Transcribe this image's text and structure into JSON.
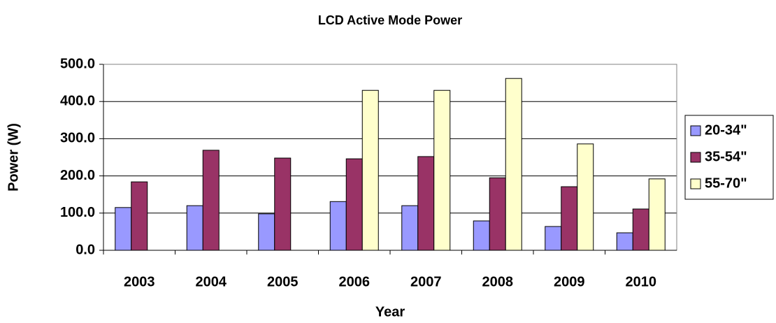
{
  "chart_data": {
    "type": "bar",
    "title": "LCD Active Mode Power",
    "x_label": "Year",
    "y_label": "Power (W)",
    "categories": [
      "2003",
      "2004",
      "2005",
      "2006",
      "2007",
      "2008",
      "2009",
      "2010"
    ],
    "series": [
      {
        "name": "20-34\"",
        "color": "#9999ff",
        "values": [
          115,
          120,
          98,
          131,
          120,
          79,
          64,
          47
        ]
      },
      {
        "name": "35-54\"",
        "color": "#993366",
        "values": [
          184,
          269,
          248,
          246,
          252,
          195,
          171,
          111
        ]
      },
      {
        "name": "55-70\"",
        "color": "#ffffcc",
        "values": [
          null,
          null,
          null,
          430,
          430,
          462,
          286,
          192
        ]
      }
    ],
    "ylim": [
      0,
      500
    ],
    "yticks": [
      {
        "value": 0,
        "label": "0.0"
      },
      {
        "value": 100,
        "label": "100.0"
      },
      {
        "value": 200,
        "label": "200.0"
      },
      {
        "value": 300,
        "label": "300.0"
      },
      {
        "value": 400,
        "label": "400.0"
      },
      {
        "value": 500,
        "label": "500.0"
      }
    ],
    "grid": true,
    "legend": "right"
  }
}
